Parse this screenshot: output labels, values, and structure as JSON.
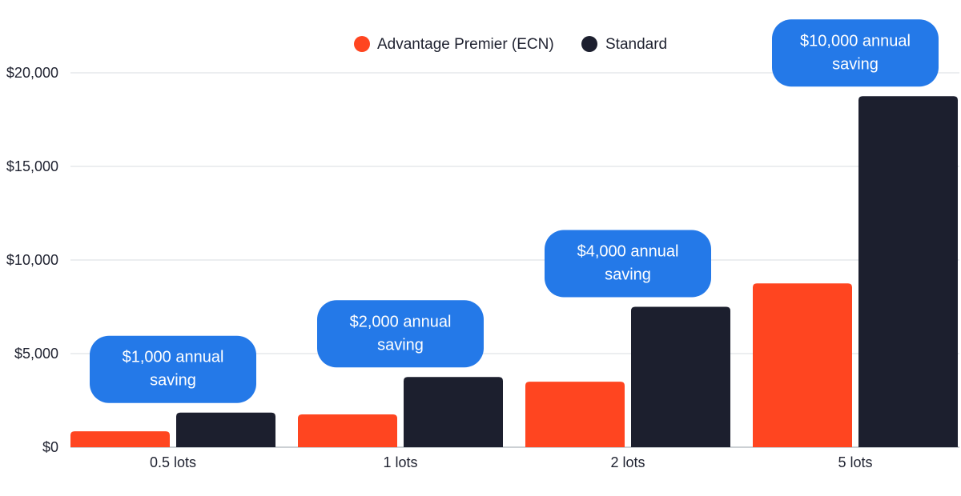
{
  "chart_data": {
    "type": "bar",
    "categories": [
      "0.5 lots",
      "1 lots",
      "2 lots",
      "5 lots"
    ],
    "series": [
      {
        "name": "Advantage Premier (ECN)",
        "color": "#ff4520",
        "values": [
          850,
          1750,
          3500,
          8750
        ]
      },
      {
        "name": "Standard",
        "color": "#1c1f2e",
        "values": [
          1850,
          3750,
          7500,
          18750
        ]
      }
    ],
    "annotations": [
      {
        "category": "0.5 lots",
        "lines": [
          "$1,000 annual",
          "saving"
        ]
      },
      {
        "category": "1 lots",
        "lines": [
          "$2,000 annual",
          "saving"
        ]
      },
      {
        "category": "2 lots",
        "lines": [
          "$4,000 annual",
          "saving"
        ]
      },
      {
        "category": "5 lots",
        "lines": [
          "$10,000 annual",
          "saving"
        ]
      }
    ],
    "yticks": [
      0,
      5000,
      10000,
      15000,
      20000
    ],
    "ytick_labels": [
      "$0",
      "$5,000",
      "$10,000",
      "$15,000",
      "$20,000"
    ],
    "ylim": [
      0,
      20000
    ],
    "grid": true,
    "legend_position": "top-center",
    "annotation_color": "#2479e8",
    "title": "",
    "xlabel": "",
    "ylabel": ""
  }
}
